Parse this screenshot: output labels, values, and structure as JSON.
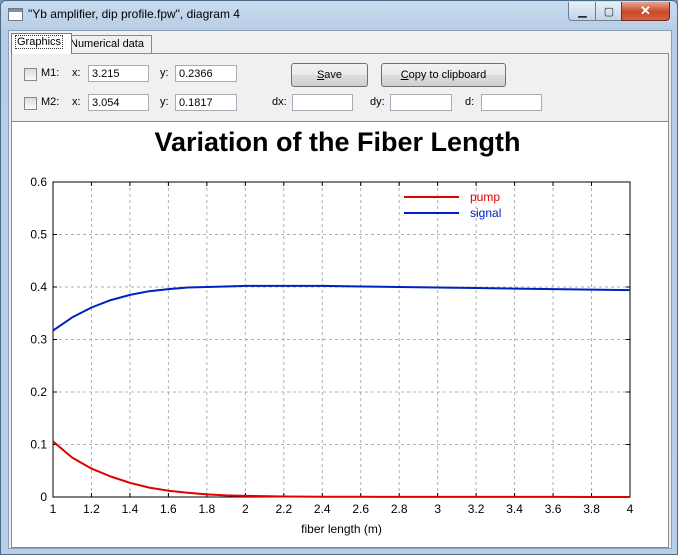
{
  "window": {
    "title": "\"Yb amplifier, dip profile.fpw\", diagram 4",
    "controls": {
      "minimize": "▁",
      "maximize": "▢",
      "close": "✕"
    }
  },
  "tabs": [
    {
      "label": "Graphics",
      "active": true
    },
    {
      "label": "Numerical data",
      "active": false
    }
  ],
  "markers": {
    "m1": {
      "label": "M1:",
      "x_label": "x:",
      "x_value": "3.215",
      "y_label": "y:",
      "y_value": "0.2366",
      "checked": false
    },
    "m2": {
      "label": "M2:",
      "x_label": "x:",
      "x_value": "3.054",
      "y_label": "y:",
      "y_value": "0.1817",
      "checked": false
    }
  },
  "deltas": {
    "dx_label": "dx:",
    "dx_value": "",
    "dy_label": "dy:",
    "dy_value": "",
    "d_label": "d:",
    "d_value": ""
  },
  "buttons": {
    "save_prefix": "",
    "save_accel": "S",
    "save_rest": "ave",
    "copy_prefix": "",
    "copy_accel": "C",
    "copy_rest": "opy to clipboard"
  },
  "colors": {
    "pump": "#e00000",
    "signal": "#0020c0",
    "grid": "#b0b0b0"
  },
  "chart_data": {
    "type": "line",
    "title": "Variation of the Fiber Length",
    "xlabel": "fiber length (m)",
    "ylabel": "",
    "xlim": [
      1,
      4
    ],
    "ylim": [
      0,
      0.6
    ],
    "xticks": [
      "1",
      "1.2",
      "1.4",
      "1.6",
      "1.8",
      "2",
      "2.2",
      "2.4",
      "2.6",
      "2.8",
      "3",
      "3.2",
      "3.4",
      "3.6",
      "3.8",
      "4"
    ],
    "yticks": [
      "0",
      "0.1",
      "0.2",
      "0.3",
      "0.4",
      "0.5",
      "0.6"
    ],
    "grid": true,
    "legend_position": "top-right",
    "x": [
      1.0,
      1.1,
      1.2,
      1.3,
      1.4,
      1.5,
      1.6,
      1.7,
      1.8,
      1.9,
      2.0,
      2.2,
      2.4,
      2.6,
      2.8,
      3.0,
      3.2,
      3.4,
      3.6,
      3.8,
      4.0
    ],
    "series": [
      {
        "name": "pump",
        "color": "#e00000",
        "values": [
          0.106,
          0.075,
          0.054,
          0.039,
          0.027,
          0.018,
          0.012,
          0.008,
          0.005,
          0.003,
          0.002,
          0.001,
          0.0005,
          0.0003,
          0.0002,
          0.0001,
          0.0001,
          0.0001,
          0.0001,
          0.0,
          0.0
        ]
      },
      {
        "name": "signal",
        "color": "#0020c0",
        "values": [
          0.317,
          0.342,
          0.361,
          0.375,
          0.385,
          0.392,
          0.396,
          0.399,
          0.4,
          0.401,
          0.402,
          0.402,
          0.402,
          0.401,
          0.4,
          0.399,
          0.398,
          0.397,
          0.396,
          0.395,
          0.394
        ]
      }
    ]
  }
}
